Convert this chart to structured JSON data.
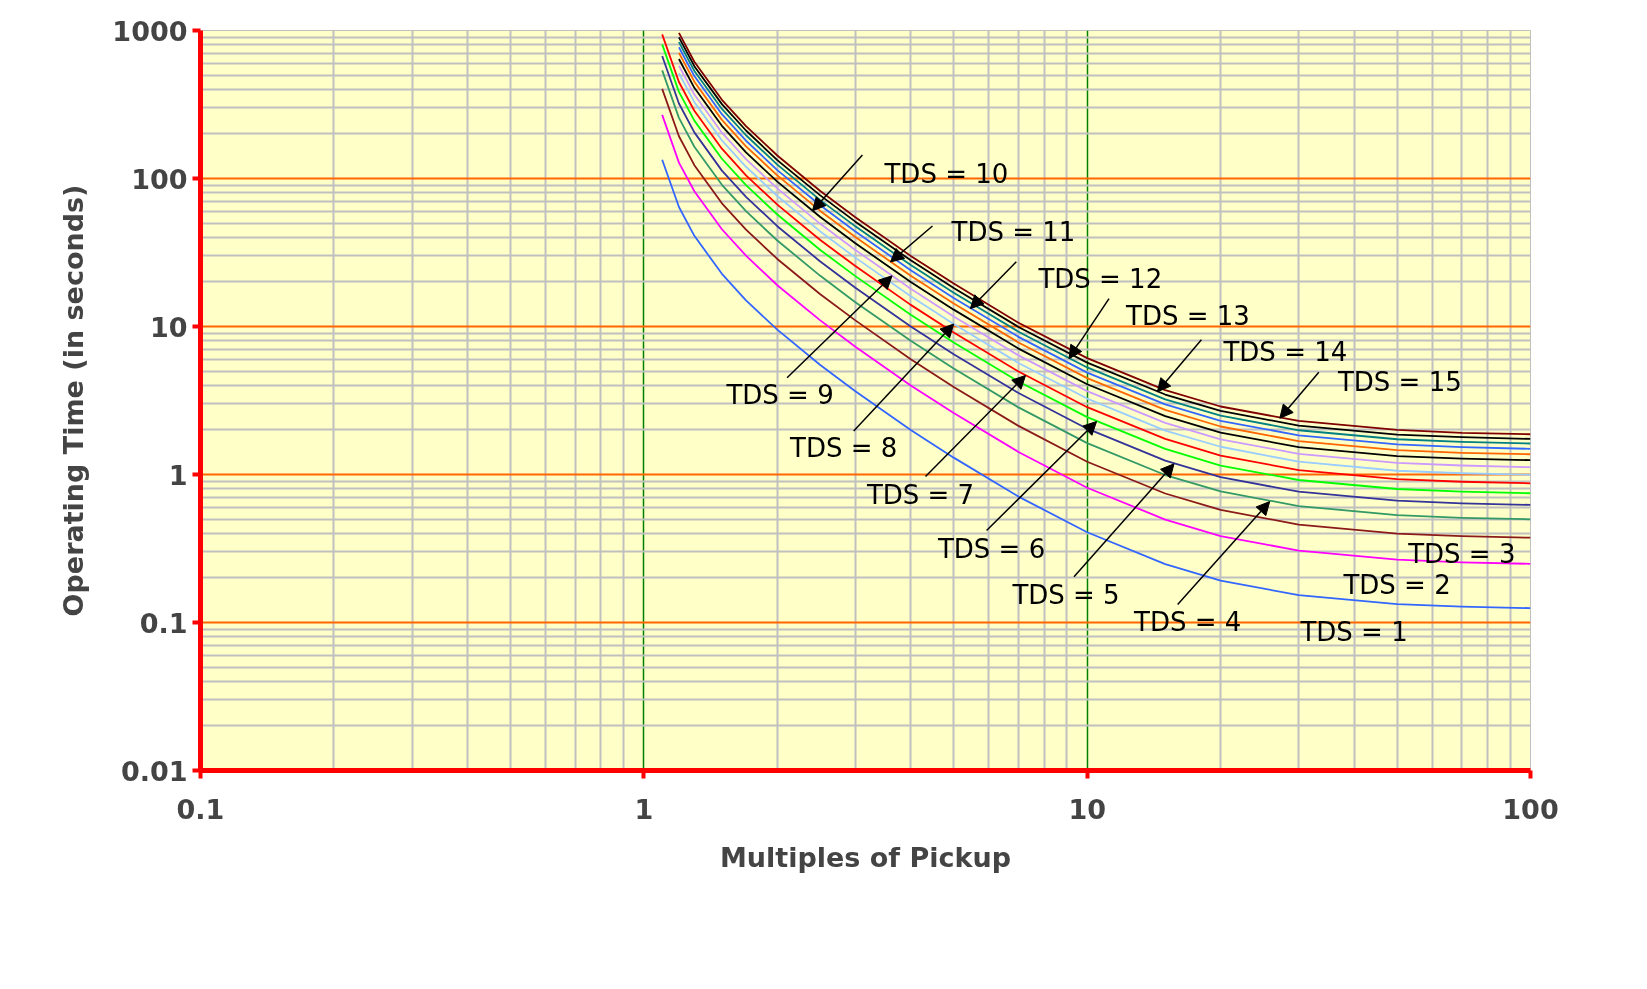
{
  "chart_data": {
    "type": "line",
    "xlabel": "Multiples of Pickup",
    "ylabel": "Operating Time (in seconds)",
    "log": "xy",
    "grid": true,
    "marker": "none",
    "line_style": "solid",
    "xlim": [
      0.1,
      100
    ],
    "xticks": [
      0.1,
      1,
      10,
      100
    ],
    "ylim": [
      0.01,
      1000
    ],
    "yticks": [
      0.01,
      0.1,
      1,
      10,
      100,
      1000
    ],
    "x": [
      1.1,
      1.2,
      1.3,
      1.5,
      1.7,
      2,
      2.5,
      3,
      4,
      5,
      7,
      10,
      15,
      20,
      30,
      50,
      70,
      100
    ],
    "series": [
      {
        "color": "#3366ff",
        "values": [
          134,
          64.2,
          41.0,
          22.7,
          15.0,
          9.52,
          5.49,
          3.65,
          2.0,
          1.3,
          0.709,
          0.407,
          0.248,
          0.192,
          0.153,
          0.133,
          0.128,
          0.125
        ]
      },
      {
        "color": "#ff00ff",
        "values": [
          269,
          128,
          82.0,
          45.4,
          30.1,
          19.0,
          11.0,
          7.3,
          4.0,
          2.6,
          1.42,
          0.814,
          0.496,
          0.384,
          0.306,
          0.266,
          0.255,
          0.249
        ]
      },
      {
        "color": "#8b1a1a",
        "values": [
          403,
          193,
          123,
          68.0,
          45.1,
          28.6,
          16.5,
          11.0,
          6.0,
          3.9,
          2.13,
          1.22,
          0.744,
          0.576,
          0.459,
          0.399,
          0.383,
          0.374
        ]
      },
      {
        "color": "#339966",
        "values": [
          538,
          257,
          164,
          90.7,
          60.2,
          38.1,
          22.0,
          14.6,
          8.0,
          5.2,
          2.84,
          1.63,
          0.992,
          0.768,
          0.612,
          0.532,
          0.51,
          0.498
        ]
      },
      {
        "color": "#333399",
        "values": [
          672,
          321,
          205,
          113,
          75.2,
          47.6,
          27.5,
          18.3,
          10.0,
          6.5,
          3.55,
          2.04,
          1.24,
          0.96,
          0.765,
          0.665,
          0.638,
          0.623
        ]
      },
      {
        "color": "#00ff00",
        "values": [
          806,
          385,
          246,
          136,
          90.2,
          57.1,
          32.9,
          21.9,
          12.0,
          7.8,
          4.25,
          2.44,
          1.49,
          1.15,
          0.918,
          0.798,
          0.765,
          0.747
        ]
      },
      {
        "color": "#ff0000",
        "values": [
          941,
          449,
          287,
          159,
          105,
          66.6,
          38.4,
          25.6,
          14.0,
          9.1,
          4.96,
          2.85,
          1.74,
          1.34,
          1.07,
          0.931,
          0.893,
          0.872
        ]
      },
      {
        "color": "#99ccff",
        "values": [
          null,
          514,
          328,
          181,
          120,
          76.2,
          43.9,
          29.2,
          16.0,
          10.4,
          5.67,
          3.26,
          1.98,
          1.54,
          1.22,
          1.06,
          1.02,
          0.996
        ]
      },
      {
        "color": "#cc99ff",
        "values": [
          null,
          578,
          369,
          204,
          135,
          85.7,
          49.4,
          32.9,
          18.0,
          11.7,
          6.38,
          3.66,
          2.23,
          1.73,
          1.38,
          1.2,
          1.15,
          1.12
        ]
      },
      {
        "color": "#000000",
        "values": [
          null,
          642,
          410,
          227,
          150,
          95.2,
          54.9,
          36.5,
          20.0,
          13.0,
          7.09,
          4.07,
          2.48,
          1.92,
          1.53,
          1.33,
          1.28,
          1.25
        ]
      },
      {
        "color": "#ff6600",
        "values": [
          null,
          706,
          451,
          249,
          165,
          105,
          60.4,
          40.2,
          22.0,
          14.3,
          7.8,
          4.48,
          2.73,
          2.11,
          1.68,
          1.46,
          1.4,
          1.37
        ]
      },
      {
        "color": "#3366ff",
        "values": [
          null,
          770,
          492,
          272,
          180,
          114,
          65.9,
          43.8,
          24.0,
          15.6,
          8.51,
          4.88,
          2.98,
          2.3,
          1.84,
          1.6,
          1.53,
          1.49
        ]
      },
      {
        "color": "#008080",
        "values": [
          null,
          835,
          533,
          295,
          196,
          124,
          71.4,
          47.5,
          26.0,
          16.9,
          9.22,
          5.29,
          3.22,
          2.5,
          1.99,
          1.73,
          1.66,
          1.62
        ]
      },
      {
        "color": "#000000",
        "values": [
          null,
          899,
          574,
          318,
          211,
          133,
          76.9,
          51.1,
          28.0,
          18.2,
          9.93,
          5.7,
          3.47,
          2.69,
          2.14,
          1.86,
          1.79,
          1.74
        ]
      },
      {
        "color": "#800000",
        "values": [
          null,
          963,
          615,
          340,
          226,
          143,
          82.4,
          54.8,
          30.0,
          19.5,
          10.6,
          6.11,
          3.72,
          2.88,
          2.3,
          2.0,
          1.91,
          1.87
        ]
      }
    ],
    "annotations": [
      {
        "text": "TDS = 1",
        "x": 40,
        "y": 0.14
      },
      {
        "text": "TDS = 2",
        "x": 50,
        "y": 0.266
      },
      {
        "text": "TDS = 3",
        "x": 70,
        "y": 0.383
      },
      {
        "text": "TDS = 4",
        "x": 25.8,
        "y": 0.656
      },
      {
        "text": "TDS = 5",
        "x": 15.7,
        "y": 1.18
      },
      {
        "text": "TDS = 6",
        "x": 10.5,
        "y": 2.28
      },
      {
        "text": "TDS = 7",
        "x": 7.26,
        "y": 4.67
      },
      {
        "text": "TDS = 8",
        "x": 5.0,
        "y": 10.4
      },
      {
        "text": "TDS = 9",
        "x": 3.63,
        "y": 22.0
      },
      {
        "text": "TDS = 10",
        "x": 2.4,
        "y": 60.4
      },
      {
        "text": "TDS = 11",
        "x": 3.6,
        "y": 27.3
      },
      {
        "text": "TDS = 12",
        "x": 5.45,
        "y": 13.2
      },
      {
        "text": "TDS = 13",
        "x": 9.1,
        "y": 6.06
      },
      {
        "text": "TDS = 14",
        "x": 14.4,
        "y": 3.62
      },
      {
        "text": "TDS = 15",
        "x": 27.2,
        "y": 2.4
      }
    ]
  }
}
